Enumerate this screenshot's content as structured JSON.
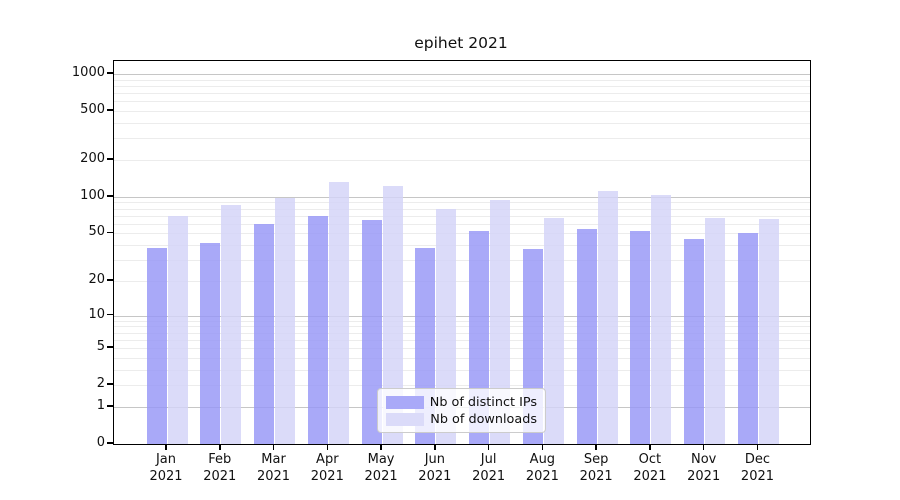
{
  "chart_data": {
    "type": "bar",
    "title": "epihet 2021",
    "categories": [
      "Jan 2021",
      "Feb 2021",
      "Mar 2021",
      "Apr 2021",
      "May 2021",
      "Jun 2021",
      "Jul 2021",
      "Aug 2021",
      "Sep 2021",
      "Oct 2021",
      "Nov 2021",
      "Dec 2021"
    ],
    "series": [
      {
        "name": "Nb of distinct IPs",
        "color": "#a9a9f8",
        "values": [
          38,
          42,
          60,
          69,
          64,
          38,
          52,
          37,
          54,
          52,
          45,
          50
        ]
      },
      {
        "name": "Nb of downloads",
        "color": "#dbdbf9",
        "values": [
          70,
          86,
          97,
          132,
          123,
          80,
          94,
          67,
          111,
          104,
          67,
          66
        ]
      }
    ],
    "xlabel": "",
    "ylabel": "",
    "yscale": "log1p",
    "yticks": [
      0,
      1,
      2,
      5,
      10,
      20,
      50,
      100,
      200,
      500,
      1000
    ],
    "ylim": [
      0,
      1290
    ],
    "grid": "horizontal, major (decades) dark + minor light",
    "legend_position": "lower center, inside axes",
    "colors": {
      "distinct_ips_bar": "#a9a9f8",
      "downloads_bar": "#dbdbf9",
      "major_grid": "#c6c6c6",
      "minor_grid": "#ececec",
      "axis": "#000000",
      "text": "#111111"
    }
  }
}
